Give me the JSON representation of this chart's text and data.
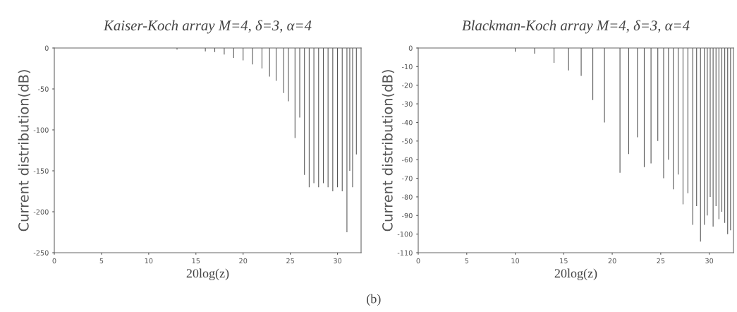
{
  "chart_data": [
    {
      "type": "bar",
      "title": "Kaiser-Koch array M=4, δ=3, α=4",
      "xlabel": "20log(z)",
      "ylabel": "Current distribution(dB)",
      "color": "#555555",
      "x": [
        13,
        16,
        17,
        18,
        19,
        20,
        21,
        22,
        22.8,
        23.5,
        24.3,
        24.8,
        25.5,
        26,
        26.5,
        27,
        27.5,
        28,
        28.5,
        29,
        29.5,
        30,
        30.5,
        31,
        31.3,
        31.6,
        32
      ],
      "values": [
        -2,
        -4,
        -5,
        -8,
        -12,
        -15,
        -20,
        -25,
        -35,
        -40,
        -55,
        -65,
        -110,
        -85,
        -155,
        -170,
        -165,
        -170,
        -165,
        -170,
        -175,
        -170,
        -175,
        -225,
        -150,
        -170,
        -130
      ],
      "xlim": [
        0,
        32.5
      ],
      "ylim": [
        -250,
        0
      ],
      "xticks": [
        0,
        5,
        10,
        15,
        20,
        25,
        30
      ],
      "yticks": [
        -250,
        -200,
        -150,
        -100,
        -50,
        0
      ]
    },
    {
      "type": "bar",
      "title": "Blackman-Koch array M=4, δ=3, α=4",
      "xlabel": "20log(z)",
      "ylabel": "Current distribution(dB)",
      "color": "#555555",
      "x": [
        10,
        12,
        14,
        15.5,
        16.8,
        18,
        19.2,
        20.8,
        21.7,
        22.6,
        23.3,
        24,
        24.7,
        25.3,
        25.8,
        26.3,
        26.8,
        27.3,
        27.8,
        28.3,
        28.7,
        29.1,
        29.5,
        29.8,
        30.1,
        30.4,
        30.7,
        31,
        31.3,
        31.6,
        31.9,
        32.2
      ],
      "values": [
        -2,
        -3,
        -8,
        -12,
        -15,
        -28,
        -40,
        -67,
        -57,
        -48,
        -64,
        -62,
        -50,
        -70,
        -60,
        -76,
        -68,
        -84,
        -78,
        -95,
        -85,
        -104,
        -95,
        -90,
        -80,
        -96,
        -85,
        -92,
        -88,
        -94,
        -100,
        -98
      ],
      "xlim": [
        0,
        32.5
      ],
      "ylim": [
        -110,
        0
      ],
      "xticks": [
        0,
        5,
        10,
        15,
        20,
        25,
        30
      ],
      "yticks": [
        -110,
        -100,
        -90,
        -80,
        -70,
        -60,
        -50,
        -40,
        -30,
        -20,
        -10,
        0
      ],
      "annotations": [
        "(b)"
      ]
    }
  ]
}
